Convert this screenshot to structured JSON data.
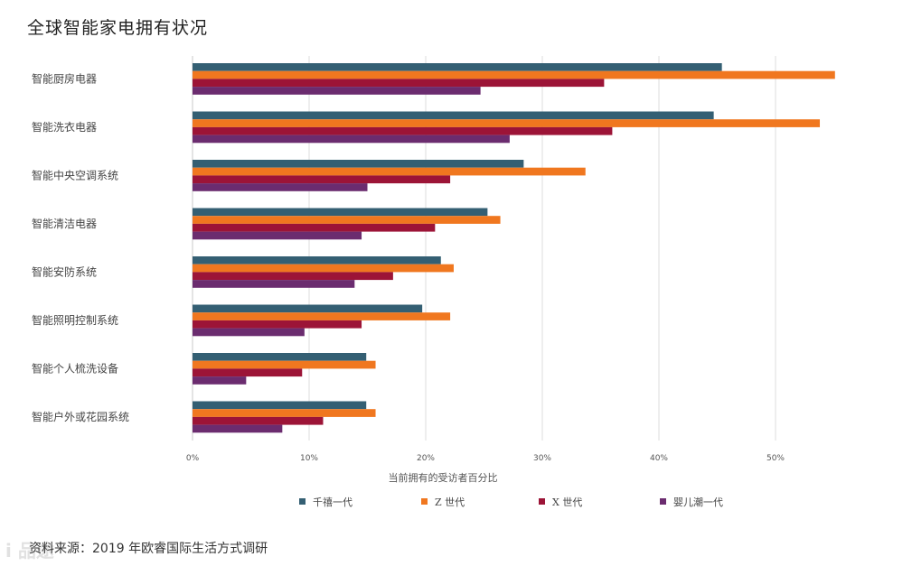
{
  "chart_data": {
    "type": "bar",
    "orientation": "horizontal",
    "title": "全球智能家电拥有状况",
    "xlabel": "当前拥有的受访者百分比",
    "ylabel": "",
    "xlim": [
      0,
      55
    ],
    "ticks": [
      0,
      10,
      20,
      30,
      40,
      50
    ],
    "tick_labels": [
      "0%",
      "10%",
      "20%",
      "30%",
      "40%",
      "50%"
    ],
    "categories": [
      "智能厨房电器",
      "智能洗衣电器",
      "智能中央空调系统",
      "智能清洁电器",
      "智能安防系统",
      "智能照明控制系统",
      "智能个人梳洗设备",
      "智能户外或花园系统"
    ],
    "series": [
      {
        "name": "千禧一代",
        "color": "#345f73",
        "values": [
          45.4,
          44.7,
          28.4,
          25.3,
          21.3,
          19.7,
          14.9,
          14.9
        ]
      },
      {
        "name": "Z 世代",
        "color": "#f0771f",
        "values": [
          55.1,
          53.8,
          33.7,
          26.4,
          22.4,
          22.1,
          15.7,
          15.7
        ]
      },
      {
        "name": "X 世代",
        "color": "#9c1437",
        "values": [
          35.3,
          36.0,
          22.1,
          20.8,
          17.2,
          14.5,
          9.4,
          11.2
        ]
      },
      {
        "name": "婴儿潮一代",
        "color": "#6b2c6f",
        "values": [
          24.7,
          27.2,
          15.0,
          14.5,
          13.9,
          9.6,
          4.6,
          7.7
        ]
      }
    ],
    "grid": true,
    "legend_position": "bottom"
  },
  "footer": {
    "source": "资料来源：2019 年欧睿国际生活方式调研",
    "watermark": "i 品途"
  }
}
